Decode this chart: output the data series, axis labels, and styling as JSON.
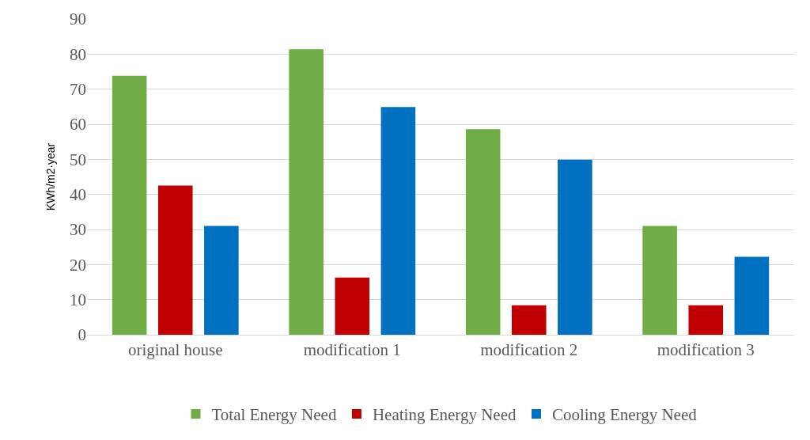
{
  "chart_data": {
    "type": "bar",
    "ylabel": "KWh/m2·year",
    "categories": [
      "original house",
      "modification 1",
      "modification 2",
      "modification 3"
    ],
    "series": [
      {
        "name": "Total Energy Need",
        "color": "#70ad47",
        "values": [
          73.8,
          81.4,
          58.6,
          31
        ]
      },
      {
        "name": "Heating Energy Need",
        "color": "#c00000",
        "values": [
          42.5,
          16.3,
          8.4,
          8.4
        ]
      },
      {
        "name": "Cooling Energy Need",
        "color": "#0070c0",
        "values": [
          31,
          64.9,
          49.9,
          22.2
        ]
      }
    ],
    "ylim": [
      0,
      90
    ],
    "yticks": [
      0,
      10,
      20,
      30,
      40,
      50,
      60,
      70,
      80,
      90
    ],
    "grid": "y",
    "legend": "bottom"
  }
}
